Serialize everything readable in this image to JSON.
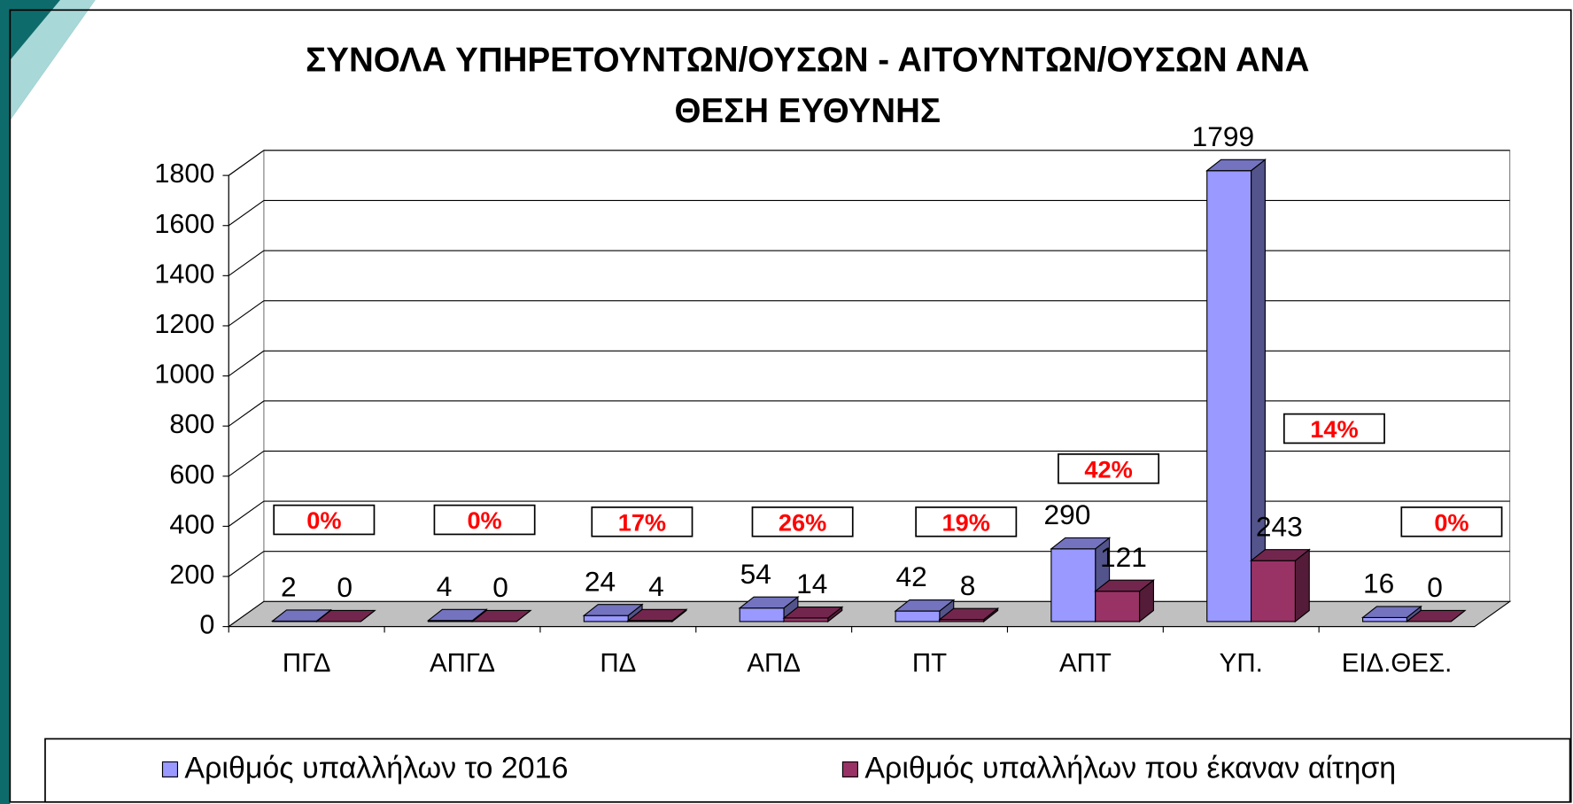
{
  "chart_data": {
    "type": "bar3d",
    "title": [
      "ΣΥΝΟΛΑ ΥΠΗΡΕΤΟΥΝΤΩΝ/ΟΥΣΩΝ - ΑΙΤΟΥΝΤΩΝ/ΟΥΣΩΝ ΑΝΑ",
      "ΘΕΣΗ ΕΥΘΥΝΗΣ"
    ],
    "categories": [
      "ΠΓΔ",
      "ΑΠΓΔ",
      "ΠΔ",
      "ΑΠΔ",
      "ΠΤ",
      "ΑΠΤ",
      "ΥΠ.",
      "ΕΙΔ.ΘΕΣ."
    ],
    "series": [
      {
        "name": "Αριθμός υπαλλήλων το 2016",
        "color": "#9999ff",
        "values": [
          2,
          4,
          24,
          54,
          42,
          290,
          1799,
          16
        ]
      },
      {
        "name": "Αριθμός υπαλλήλων που έκαναν αίτηση",
        "color": "#993366",
        "values": [
          0,
          0,
          4,
          14,
          8,
          121,
          243,
          0
        ]
      }
    ],
    "annotations": [
      "0%",
      "0%",
      "17%",
      "26%",
      "19%",
      "42%",
      "14%",
      "0%"
    ],
    "annotation_color": "#ff0000",
    "ylim": [
      0,
      1800
    ],
    "yticks": [
      0,
      200,
      400,
      600,
      800,
      1000,
      1200,
      1400,
      1600,
      1800
    ],
    "grid": true,
    "legend": "bottom"
  }
}
